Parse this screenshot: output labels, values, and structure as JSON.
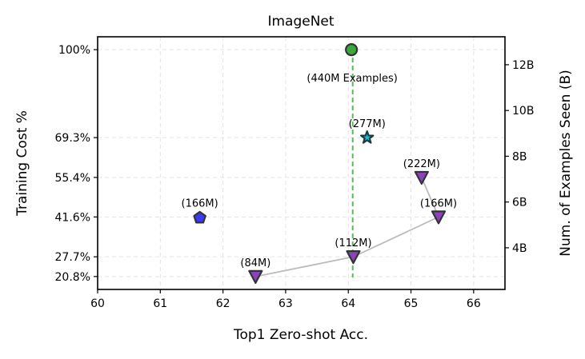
{
  "chart_data": {
    "type": "scatter",
    "title": "ImageNet",
    "xlabel": "Top1 Zero-shot Acc.",
    "ylabel": "Training Cost %",
    "ylabel_right": "Num. of Examples Seen (B)",
    "xlim": [
      60,
      66.5
    ],
    "ylim": [
      16.3,
      104.5
    ],
    "ylim_right": [
      2.18,
      13.22
    ],
    "grid": true,
    "x_ticks": [
      60,
      61,
      62,
      63,
      64,
      65,
      66
    ],
    "y_ticks": [
      100,
      69.3,
      55.4,
      41.6,
      27.7,
      20.8
    ],
    "y_tick_labels": [
      "100%",
      "69.3%",
      "55.4%",
      "41.6%",
      "27.7%",
      "20.8%"
    ],
    "y_right_ticks": [
      4,
      6,
      8,
      10,
      12
    ],
    "y_right_tick_labels": [
      "4B",
      "6B",
      "8B",
      "10B",
      "12B"
    ],
    "reference_line": {
      "x": 64.07,
      "y_range": [
        20.5,
        100
      ],
      "color": "#5cb85c",
      "style": "dashed"
    },
    "points": [
      {
        "x": 64.05,
        "y": 100,
        "label": "(440M Examples)",
        "marker": "circle",
        "color": "#3aa83a",
        "label_pos": "below"
      },
      {
        "x": 64.3,
        "y": 69.3,
        "label": "(277M)",
        "marker": "star",
        "color": "#17becf",
        "label_pos": "above"
      },
      {
        "x": 61.63,
        "y": 41.6,
        "label": "(166M)",
        "marker": "pentagon",
        "color": "#3a3af5",
        "label_pos": "above"
      },
      {
        "x": 62.52,
        "y": 20.8,
        "label": "(84M)",
        "marker": "triangle-down",
        "color": "#8a44b8",
        "label_pos": "above"
      },
      {
        "x": 64.08,
        "y": 27.7,
        "label": "(112M)",
        "marker": "triangle-down",
        "color": "#8a44b8",
        "label_pos": "above"
      },
      {
        "x": 65.44,
        "y": 41.6,
        "label": "(166M)",
        "marker": "triangle-down",
        "color": "#8a44b8",
        "label_pos": "above"
      },
      {
        "x": 65.17,
        "y": 55.4,
        "label": "(222M)",
        "marker": "triangle-down",
        "color": "#8a44b8",
        "label_pos": "above"
      }
    ],
    "connected_series": {
      "point_indices": [
        3,
        4,
        5,
        6
      ],
      "color": "#bbbbbb"
    }
  }
}
